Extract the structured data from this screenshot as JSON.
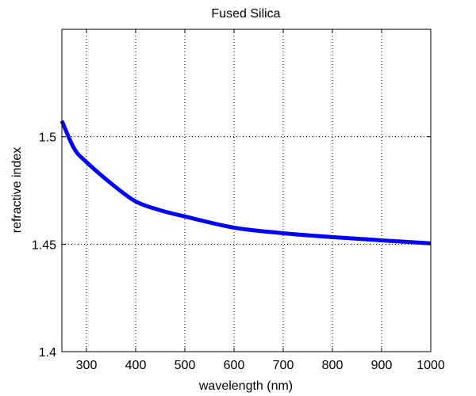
{
  "chart_data": {
    "type": "line",
    "title": "Fused Silica",
    "xlabel": "wavelength (nm)",
    "ylabel": "refractive index",
    "xlim": [
      250,
      1000
    ],
    "ylim": [
      1.4,
      1.55
    ],
    "xticks": [
      300,
      400,
      500,
      600,
      700,
      800,
      900,
      1000
    ],
    "xtick_labels": [
      "300",
      "400",
      "500",
      "600",
      "700",
      "800",
      "900",
      "1000"
    ],
    "yticks": [
      1.4,
      1.45,
      1.5
    ],
    "ytick_labels": [
      "1.4",
      "1.45",
      "1.5"
    ],
    "grid": true,
    "grid_style": "dotted",
    "legend": null,
    "series": [
      {
        "name": "Fused Silica",
        "color": "#0000ff",
        "x": [
          250,
          275,
          300,
          350,
          400,
          450,
          500,
          600,
          700,
          800,
          900,
          1000
        ],
        "y": [
          1.5074,
          1.4945,
          1.4882,
          1.4783,
          1.4699,
          1.4658,
          1.4629,
          1.4577,
          1.4551,
          1.4533,
          1.4518,
          1.4504
        ]
      }
    ]
  }
}
